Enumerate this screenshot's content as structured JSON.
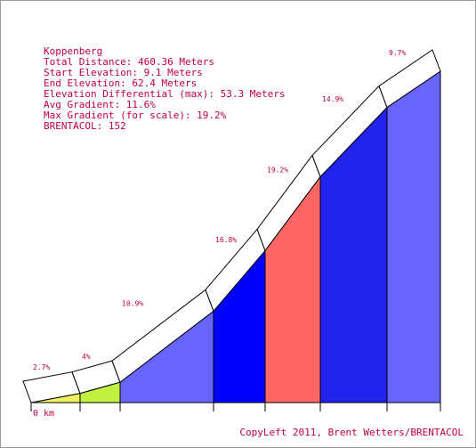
{
  "chart_data": {
    "type": "profile",
    "title": "Koppenberg",
    "info": [
      "Total Distance: 460.36 Meters",
      "Start Elevation: 9.1 Meters",
      "End Elevation: 62.4 Meters",
      "Elevation Differential (max): 53.3 Meters",
      "Avg Gradient: 11.6%",
      "Max Gradient (for scale): 19.2%",
      "BRENTACOL: 152"
    ],
    "values": [
      2.7,
      4,
      10.9,
      16.8,
      19.2,
      14.9,
      9.7
    ],
    "value_labels": [
      "2.7%",
      "4%",
      "10.9%",
      "16.8%",
      "19.2%",
      "14.9%",
      "9.7%"
    ],
    "colors": [
      "#f0f060",
      "#c0f040",
      "#6666ff",
      "#0000ff",
      "#ff6666",
      "#2222ee",
      "#6666ff"
    ],
    "x_start_label": "0 km",
    "footer": "CopyLeft 2011, Brent Wetters/BRENTACOL"
  }
}
